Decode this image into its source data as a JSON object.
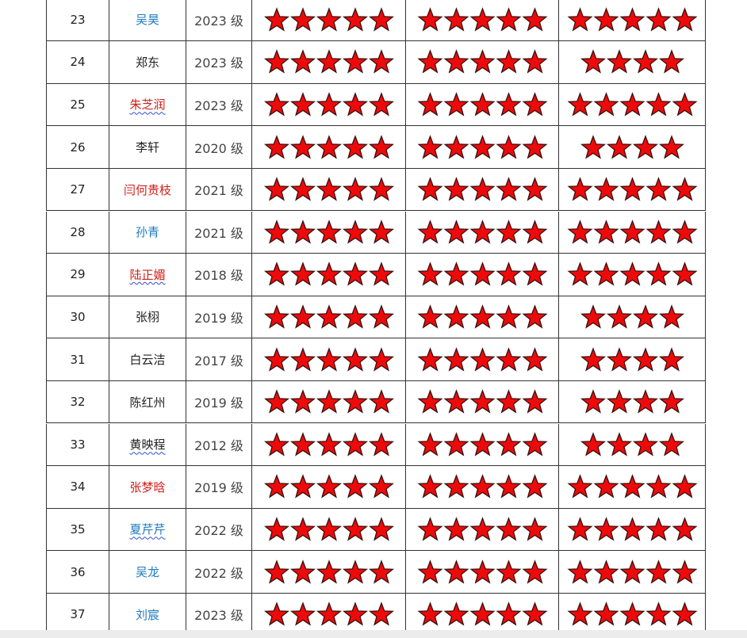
{
  "table": {
    "rows": [
      {
        "no": "23",
        "name": "吴昊",
        "name_color": "#1f7bbf",
        "underline": false,
        "grade": "2023 级",
        "stars": [
          5,
          5,
          5
        ]
      },
      {
        "no": "24",
        "name": "郑东",
        "name_color": "#222222",
        "underline": false,
        "grade": "2023 级",
        "stars": [
          5,
          5,
          4
        ]
      },
      {
        "no": "25",
        "name": "朱芝润",
        "name_color": "#d0201a",
        "underline": true,
        "grade": "2023 级",
        "stars": [
          5,
          5,
          5
        ]
      },
      {
        "no": "26",
        "name": "李轩",
        "name_color": "#222222",
        "underline": false,
        "grade": "2020 级",
        "stars": [
          5,
          5,
          4
        ]
      },
      {
        "no": "27",
        "name": "闫何贵枝",
        "name_color": "#d0201a",
        "underline": false,
        "grade": "2021 级",
        "stars": [
          5,
          5,
          5
        ]
      },
      {
        "no": "28",
        "name": "孙青",
        "name_color": "#1f7bbf",
        "underline": false,
        "grade": "2021 级",
        "stars": [
          5,
          5,
          5
        ]
      },
      {
        "no": "29",
        "name": "陆正媚",
        "name_color": "#d0201a",
        "underline": true,
        "grade": "2018 级",
        "stars": [
          5,
          5,
          5
        ]
      },
      {
        "no": "30",
        "name": "张栩",
        "name_color": "#222222",
        "underline": false,
        "grade": "2019 级",
        "stars": [
          5,
          5,
          4
        ]
      },
      {
        "no": "31",
        "name": "白云洁",
        "name_color": "#222222",
        "underline": false,
        "grade": "2017 级",
        "stars": [
          5,
          5,
          4
        ]
      },
      {
        "no": "32",
        "name": "陈红州",
        "name_color": "#222222",
        "underline": false,
        "grade": "2019 级",
        "stars": [
          5,
          5,
          4
        ]
      },
      {
        "no": "33",
        "name": "黄映程",
        "name_color": "#222222",
        "underline": true,
        "grade": "2012 级",
        "stars": [
          5,
          5,
          4
        ]
      },
      {
        "no": "34",
        "name": "张梦晗",
        "name_color": "#d0201a",
        "underline": false,
        "grade": "2019 级",
        "stars": [
          5,
          5,
          5
        ]
      },
      {
        "no": "35",
        "name": "夏芹芹",
        "name_color": "#1f7bbf",
        "underline": true,
        "grade": "2022 级",
        "stars": [
          5,
          5,
          5
        ]
      },
      {
        "no": "36",
        "name": "吴龙",
        "name_color": "#1f7bbf",
        "underline": false,
        "grade": "2022 级",
        "stars": [
          5,
          5,
          5
        ]
      },
      {
        "no": "37",
        "name": "刘宸",
        "name_color": "#1f7bbf",
        "underline": false,
        "grade": "2023 级",
        "stars": [
          5,
          5,
          5
        ]
      }
    ]
  }
}
